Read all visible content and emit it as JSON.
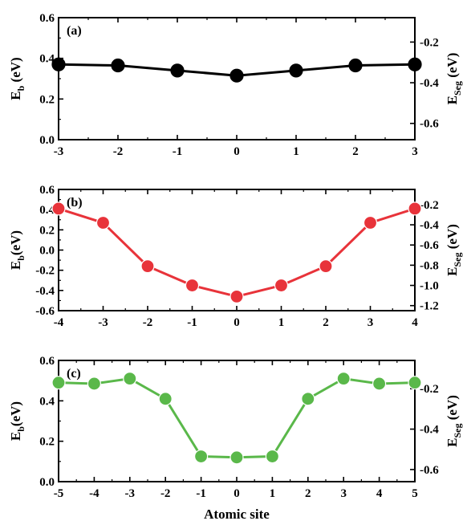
{
  "chart_data": [
    {
      "type": "line",
      "panel_label": "(a)",
      "x": [
        -3,
        -2,
        -1,
        0,
        1,
        2,
        3
      ],
      "values": [
        0.37,
        0.365,
        0.34,
        0.315,
        0.34,
        0.365,
        0.37
      ],
      "color": "#000000",
      "xlim": [
        -3,
        3
      ],
      "ylim": [
        0.0,
        0.6
      ],
      "y2lim": [
        -0.68,
        -0.08
      ],
      "xticks": [
        "-3",
        "-2",
        "-1",
        "0",
        "1",
        "2",
        "3"
      ],
      "yticks": [
        "0.0",
        "0.2",
        "0.4",
        "0.6"
      ],
      "y2ticks": [
        "-0.2",
        "-0.4",
        "-0.6"
      ],
      "ylabel": "E",
      "ylabel_sub": "b",
      "ylabel_unit": " (eV)",
      "y2label": "E",
      "y2label_sub": "Seg",
      "y2label_unit": " (eV)"
    },
    {
      "type": "line",
      "panel_label": "(b)",
      "x": [
        -4,
        -3,
        -2,
        -1,
        0,
        1,
        2,
        3,
        4
      ],
      "values": [
        0.41,
        0.27,
        -0.16,
        -0.35,
        -0.46,
        -0.35,
        -0.16,
        0.27,
        0.41
      ],
      "color": "#e8333a",
      "xlim": [
        -4,
        4
      ],
      "ylim": [
        -0.6,
        0.6
      ],
      "y2lim": [
        -1.25,
        -0.05
      ],
      "xticks": [
        "-4",
        "-3",
        "-2",
        "-1",
        "0",
        "1",
        "2",
        "3",
        "4"
      ],
      "yticks": [
        "-0.6",
        "-0.4",
        "-0.2",
        "0.0",
        "0.2",
        "0.4",
        "0.6"
      ],
      "y2ticks": [
        "-0.2",
        "-0.4",
        "-0.6",
        "-0.8",
        "-1.0",
        "-1.2"
      ],
      "ylabel": "E",
      "ylabel_sub": "b",
      "ylabel_unit": "(eV)",
      "y2label": "E",
      "y2label_sub": "Seg",
      "y2label_unit": " (eV)"
    },
    {
      "type": "line",
      "panel_label": "(c)",
      "x": [
        -5,
        -4,
        -3,
        -2,
        -1,
        0,
        1,
        2,
        3,
        4,
        5
      ],
      "values": [
        0.49,
        0.485,
        0.51,
        0.41,
        0.125,
        0.12,
        0.125,
        0.41,
        0.51,
        0.485,
        0.49
      ],
      "color": "#5ab84a",
      "xlim": [
        -5,
        5
      ],
      "ylim": [
        0.0,
        0.6
      ],
      "y2lim": [
        -0.66,
        -0.06
      ],
      "xticks": [
        "-5",
        "-4",
        "-3",
        "-2",
        "-1",
        "0",
        "1",
        "2",
        "3",
        "4",
        "5"
      ],
      "yticks": [
        "0.0",
        "0.2",
        "0.4",
        "0.6"
      ],
      "y2ticks": [
        "-0.2",
        "-0.4",
        "-0.6"
      ],
      "ylabel": "E",
      "ylabel_sub": "b",
      "ylabel_unit": "(eV)",
      "y2label": "E",
      "y2label_sub": "Seg",
      "y2label_unit": " (eV)",
      "xlabel": "Atomic site"
    }
  ]
}
